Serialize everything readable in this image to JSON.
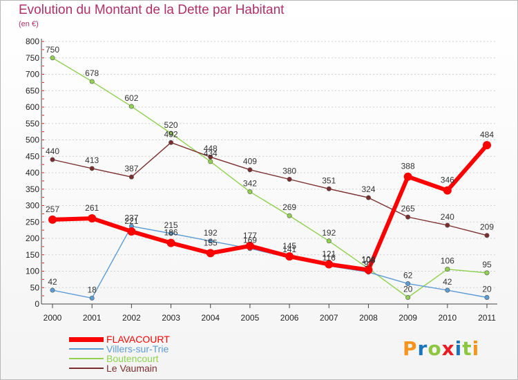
{
  "header": {
    "title": "Evolution du Montant de la Dette par Habitant",
    "subtitle": "(en €)"
  },
  "chart_data": {
    "type": "line",
    "title": "Evolution du Montant de la Dette par Habitant",
    "subtitle": "(en €)",
    "xlabel": "",
    "ylabel": "",
    "x": [
      "2000",
      "2001",
      "2002",
      "2003",
      "2004",
      "2005",
      "2006",
      "2007",
      "2008",
      "2009",
      "2010",
      "2011"
    ],
    "ylim": [
      0,
      800
    ],
    "yticks": [
      0,
      50,
      100,
      150,
      200,
      250,
      300,
      350,
      400,
      450,
      500,
      550,
      600,
      650,
      700,
      750,
      800
    ],
    "grid": "y-axis dashed",
    "legend_position": "bottom-left",
    "series": [
      {
        "name": "FLAVACOURT",
        "color": "#ff0000",
        "values": [
          257,
          261,
          221,
          186,
          155,
          177,
          145,
          121,
          104,
          388,
          346,
          484
        ]
      },
      {
        "name": "Villers-sur-Trie",
        "color": "#5b9bd5",
        "values": [
          42,
          18,
          237,
          215,
          192,
          169,
          141,
          116,
          97,
          62,
          42,
          20
        ]
      },
      {
        "name": "Boutencourt",
        "color": "#8fd14f",
        "values": [
          750,
          678,
          602,
          520,
          434,
          342,
          269,
          192,
          108,
          20,
          106,
          95
        ]
      },
      {
        "name": "Le Vaumain",
        "color": "#7b2d2d",
        "values": [
          440,
          413,
          387,
          492,
          448,
          409,
          380,
          351,
          324,
          265,
          240,
          209
        ]
      }
    ]
  },
  "brand": {
    "letters": [
      "P",
      "r",
      "o",
      "x",
      "i",
      "t",
      "i"
    ],
    "colors": [
      "#f7941d",
      "#1b75bc",
      "#8dc63f",
      "#ec1c24",
      "#1b75bc",
      "#8dc63f",
      "#f7941d"
    ]
  }
}
